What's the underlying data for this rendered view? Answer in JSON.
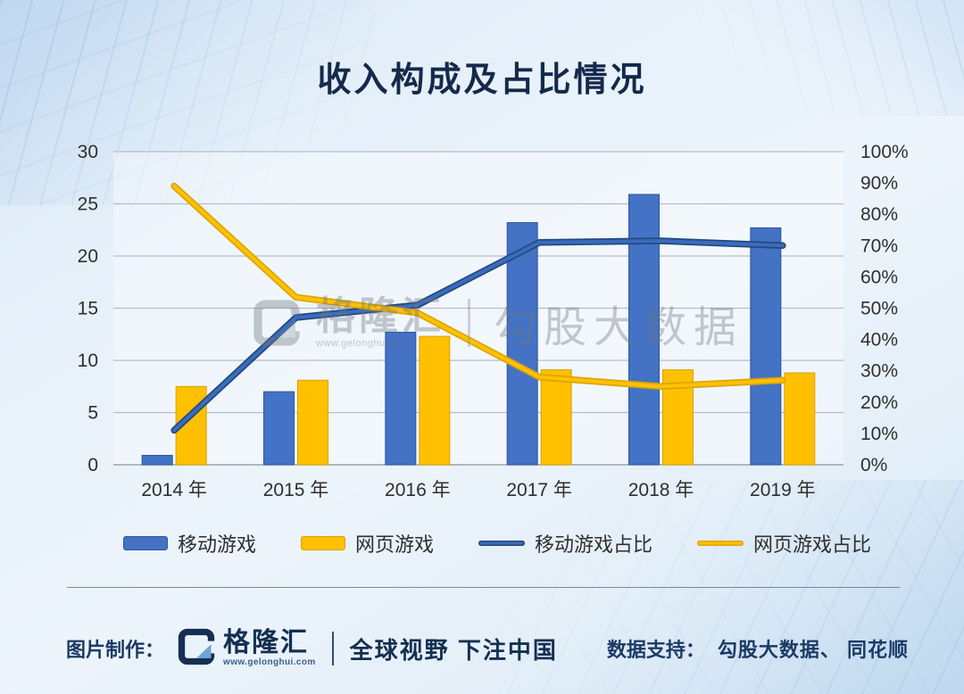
{
  "page": {
    "title": "收入构成及占比情况"
  },
  "chart_data": {
    "type": "combo-bar-line",
    "title": "收入构成及占比情况",
    "categories": [
      "2014 年",
      "2015 年",
      "2016 年",
      "2017 年",
      "2018 年",
      "2019 年"
    ],
    "bar_series": [
      {
        "name": "移动游戏",
        "axis": "left",
        "color": "#4472C4",
        "border": "#2F55A0",
        "values": [
          0.9,
          7.0,
          12.7,
          23.2,
          25.9,
          22.7
        ]
      },
      {
        "name": "网页游戏",
        "axis": "left",
        "color": "#FFC000",
        "border": "#D9A300",
        "values": [
          7.5,
          8.1,
          12.3,
          9.1,
          9.1,
          8.8
        ]
      }
    ],
    "line_series": [
      {
        "name": "移动游戏占比",
        "axis": "right",
        "color": "#3A6CBE",
        "edge_color": "#24497F",
        "values": [
          11,
          47,
          51,
          71,
          71.5,
          70
        ]
      },
      {
        "name": "网页游戏占比",
        "axis": "right",
        "color": "#FFC104",
        "edge_color": "#DDA500",
        "values": [
          89,
          53.5,
          48.5,
          28,
          25,
          27
        ]
      }
    ],
    "left_axis": {
      "min": 0,
      "max": 30,
      "step": 5,
      "ticks": [
        "0",
        "5",
        "10",
        "15",
        "20",
        "25",
        "30"
      ]
    },
    "right_axis": {
      "min": 0,
      "max": 100,
      "step": 10,
      "suffix": "%",
      "ticks": [
        "0%",
        "10%",
        "20%",
        "30%",
        "40%",
        "50%",
        "60%",
        "70%",
        "80%",
        "90%",
        "100%"
      ]
    },
    "grid": true,
    "legend_position": "bottom"
  },
  "watermark": {
    "brand": "格隆汇",
    "url": "www.gelonghui.com",
    "text": "勾股大数据"
  },
  "footer": {
    "made_by_label": "图片制作：",
    "brand": "格隆汇",
    "brand_url": "www.gelonghui.com",
    "slogan": "全球视野 下注中国",
    "data_support_label": "数据支持：",
    "data_support_value": "勾股大数据、 同花顺"
  },
  "colors": {
    "title_navy": "#14294b",
    "footer_navy": "#1b3a66",
    "watermark_gray": "#6d7780",
    "gridline": "#b6bdc8",
    "background_blue": "#e0edf8"
  }
}
